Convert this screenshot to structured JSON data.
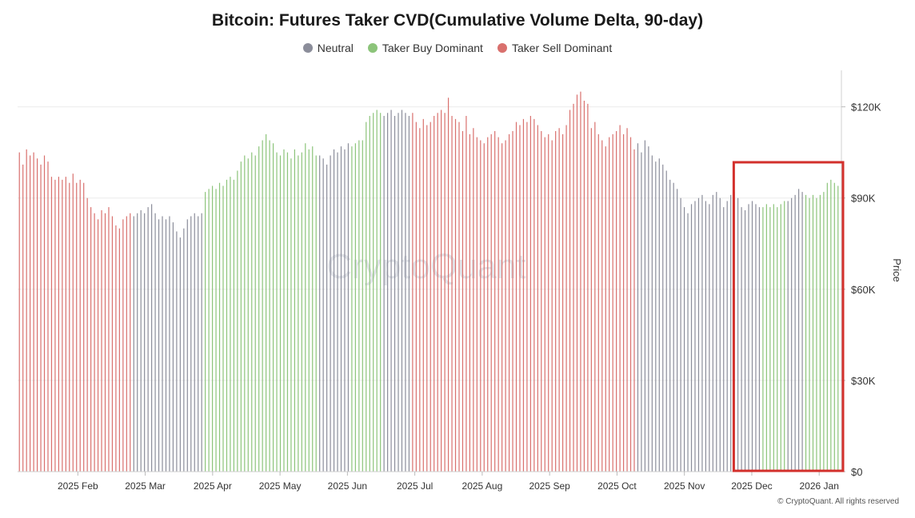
{
  "title": "Bitcoin: Futures Taker CVD(Cumulative Volume Delta, 90-day)",
  "legend": [
    {
      "label": "Neutral",
      "color": "#8b8d9a"
    },
    {
      "label": "Taker Buy Dominant",
      "color": "#8cc47a"
    },
    {
      "label": "Taker Sell Dominant",
      "color": "#d9706d"
    }
  ],
  "watermark": "CryptoQuant",
  "copyright": "© CryptoQuant. All rights reserved",
  "highlight_box_color": "#d3302c",
  "chart_data": {
    "type": "bar",
    "ylabel": "Price",
    "ylim": [
      0,
      132000
    ],
    "y_ticks": [
      {
        "value": 0,
        "label": "$0"
      },
      {
        "value": 30000,
        "label": "$30K"
      },
      {
        "value": 60000,
        "label": "$60K"
      },
      {
        "value": 90000,
        "label": "$90K"
      },
      {
        "value": 120000,
        "label": "$120K"
      }
    ],
    "x_ticks": [
      "2025 Feb",
      "2025 Mar",
      "2025 Apr",
      "2025 May",
      "2025 Jun",
      "2025 Jul",
      "2025 Aug",
      "2025 Sep",
      "2025 Oct",
      "2025 Nov",
      "2025 Dec",
      "2026 Jan"
    ],
    "grid": true,
    "highlight_range": [
      "2025 Dec 29",
      "2026 Jan 27"
    ],
    "series": [
      {
        "name": "Taker Sell Dominant",
        "color": "#d9706d",
        "values": [
          105000,
          101000,
          106000,
          104000,
          105000,
          103000,
          101000,
          104000,
          102000,
          97000,
          96000,
          97000,
          96000,
          97000,
          95000,
          98000,
          95000,
          96000,
          95000,
          90000,
          87000,
          85000,
          83000,
          86000,
          85000,
          87000,
          84000,
          81000,
          80000,
          83000,
          84000,
          85000
        ]
      },
      {
        "name": "Neutral",
        "color": "#8b8d9a",
        "values": [
          84000,
          85000,
          86000,
          85000,
          87000,
          88000,
          85000,
          83000,
          84000,
          83000,
          84000,
          82000,
          79000,
          77000,
          80000,
          83000,
          84000,
          85000,
          84000,
          85000
        ]
      },
      {
        "name": "Taker Buy Dominant",
        "color": "#8cc47a",
        "values": [
          92000,
          93000,
          94000,
          93000,
          95000,
          94000,
          96000,
          97000,
          96000,
          99000,
          102000,
          104000,
          103000,
          105000,
          104000,
          107000,
          109000,
          111000,
          109000,
          108000,
          105000,
          104000,
          106000,
          105000,
          103000,
          106000,
          104000,
          105000,
          108000,
          106000,
          107000,
          104000
        ]
      },
      {
        "name": "Neutral",
        "color": "#8b8d9a",
        "values": [
          104000,
          103000,
          101000,
          104000,
          106000,
          105000,
          107000,
          106000,
          108000
        ]
      },
      {
        "name": "Taker Buy Dominant",
        "color": "#8cc47a",
        "values": [
          107000,
          108000,
          109000,
          109000,
          115000,
          117000,
          118000,
          119000,
          118000
        ]
      },
      {
        "name": "Neutral",
        "color": "#8b8d9a",
        "values": [
          117000,
          118000,
          119000,
          117000,
          118000,
          119000,
          118000,
          117000
        ]
      },
      {
        "name": "Taker Sell Dominant",
        "color": "#d9706d",
        "values": [
          118000,
          115000,
          113000,
          116000,
          114000,
          115000,
          117000,
          118000,
          119000,
          118000,
          123000,
          117000,
          116000,
          115000,
          112000,
          117000,
          111000,
          113000,
          110000,
          109000,
          108000,
          110000,
          111000,
          112000,
          110000,
          108000,
          109000,
          111000,
          112000,
          115000,
          114000,
          116000,
          115000,
          117000,
          116000,
          114000,
          112000,
          110000,
          111000,
          109000,
          112000,
          113000,
          111000,
          114000,
          119000,
          121000,
          124000,
          125000,
          122000,
          121000,
          113000,
          115000,
          111000,
          109000,
          107000,
          110000,
          111000,
          112000,
          114000,
          111000,
          113000,
          110000,
          106000
        ]
      },
      {
        "name": "Neutral",
        "color": "#8b8d9a",
        "values": [
          108000,
          105000,
          109000,
          107000,
          104000,
          102000,
          103000,
          101000,
          99000,
          96000,
          95000,
          93000,
          90000,
          87000,
          85000,
          88000,
          89000,
          90000,
          91000,
          89000,
          88000,
          91000,
          92000,
          90000,
          87000,
          89000,
          91000,
          92000,
          90000,
          87000,
          86000,
          88000,
          89000,
          88000,
          87000
        ]
      },
      {
        "name": "Taker Buy Dominant",
        "color": "#8cc47a",
        "values": [
          87000,
          88000,
          87000,
          88000,
          87000,
          88000,
          89000
        ]
      },
      {
        "name": "Neutral",
        "color": "#8b8d9a",
        "values": [
          89000,
          90000,
          91000,
          93000,
          92000
        ]
      },
      {
        "name": "Taker Buy Dominant",
        "color": "#8cc47a",
        "values": [
          91000,
          90000,
          91000,
          90000,
          91000,
          92000,
          95000,
          96000,
          95000,
          94000
        ]
      }
    ]
  }
}
